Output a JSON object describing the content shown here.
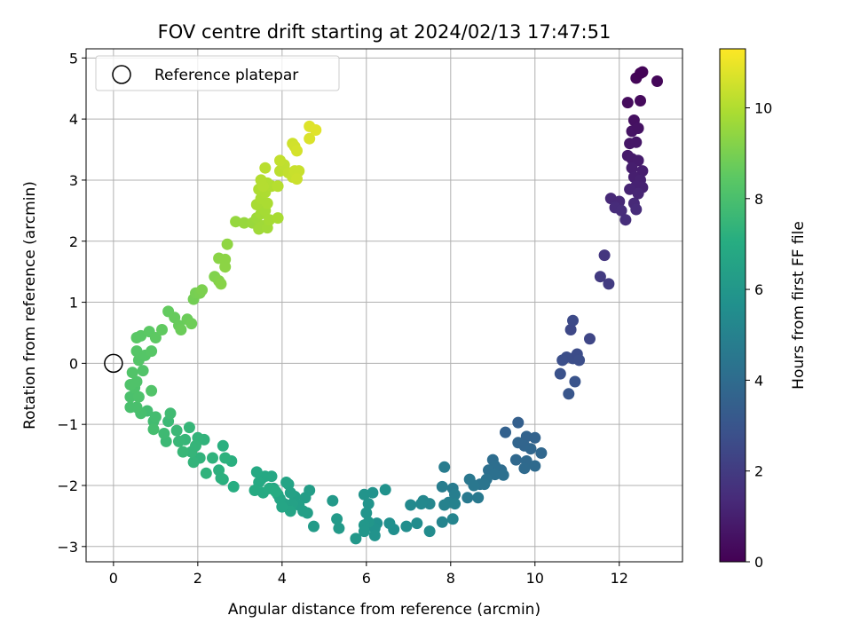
{
  "chart_data": {
    "type": "scatter",
    "title": "FOV centre drift starting at 2024/02/13 17:47:51",
    "xlabel": "Angular distance from reference (arcmin)",
    "ylabel": "Rotation from reference (arcmin)",
    "xlim": [
      -0.65,
      13.5
    ],
    "ylim": [
      -3.25,
      5.15
    ],
    "xticks": [
      0,
      2,
      4,
      6,
      8,
      10,
      12
    ],
    "yticks": [
      -3,
      -2,
      -1,
      0,
      1,
      2,
      3,
      4,
      5
    ],
    "grid": true,
    "legend": {
      "placement": "upper-left",
      "entries": [
        "Reference platepar"
      ]
    },
    "reference_point": {
      "x": 0,
      "y": 0
    },
    "colorbar": {
      "label": "Hours from first FF file",
      "range": [
        0,
        11.3
      ],
      "ticks": [
        0,
        2,
        4,
        6,
        8,
        10
      ],
      "colormap": "viridis"
    },
    "series": [
      {
        "points": [
          [
            12.4,
            4.67,
            0.15
          ],
          [
            12.5,
            4.75,
            0.1
          ],
          [
            12.55,
            4.77,
            0.1
          ],
          [
            12.9,
            4.62,
            0.2
          ],
          [
            12.2,
            4.27,
            0.35
          ],
          [
            12.5,
            4.3,
            0.3
          ],
          [
            12.35,
            3.98,
            0.5
          ],
          [
            12.3,
            3.8,
            0.6
          ],
          [
            12.45,
            3.85,
            0.55
          ],
          [
            12.25,
            3.6,
            0.7
          ],
          [
            12.4,
            3.62,
            0.7
          ],
          [
            12.2,
            3.4,
            0.8
          ],
          [
            12.3,
            3.35,
            0.85
          ],
          [
            12.45,
            3.32,
            0.9
          ],
          [
            12.3,
            3.2,
            0.95
          ],
          [
            12.55,
            3.15,
            0.95
          ],
          [
            12.35,
            3.05,
            1.0
          ],
          [
            12.5,
            3.0,
            1.05
          ],
          [
            12.4,
            2.9,
            1.1
          ],
          [
            12.55,
            2.88,
            1.1
          ],
          [
            12.25,
            2.85,
            1.15
          ],
          [
            12.45,
            2.78,
            1.2
          ],
          [
            11.8,
            2.7,
            1.3
          ],
          [
            12.0,
            2.65,
            1.3
          ],
          [
            12.35,
            2.62,
            1.35
          ],
          [
            11.9,
            2.55,
            1.4
          ],
          [
            12.05,
            2.5,
            1.45
          ],
          [
            12.4,
            2.52,
            1.4
          ],
          [
            12.15,
            2.35,
            1.5
          ],
          [
            11.65,
            1.77,
            1.8
          ],
          [
            11.55,
            1.42,
            1.95
          ],
          [
            11.75,
            1.3,
            2.0
          ],
          [
            11.3,
            0.4,
            2.4
          ],
          [
            10.85,
            0.55,
            2.5
          ],
          [
            10.9,
            0.7,
            2.55
          ],
          [
            10.75,
            0.1,
            2.7
          ],
          [
            10.65,
            0.05,
            2.75
          ],
          [
            10.9,
            0.08,
            2.7
          ],
          [
            11.0,
            0.15,
            2.65
          ],
          [
            11.05,
            0.05,
            2.7
          ],
          [
            10.6,
            -0.17,
            2.85
          ],
          [
            10.95,
            -0.3,
            2.95
          ],
          [
            10.8,
            -0.5,
            3.05
          ],
          [
            9.6,
            -0.97,
            3.45
          ],
          [
            9.8,
            -1.2,
            3.6
          ],
          [
            10.0,
            -1.22,
            3.6
          ],
          [
            9.3,
            -1.13,
            3.55
          ],
          [
            9.6,
            -1.3,
            3.7
          ],
          [
            9.75,
            -1.35,
            3.7
          ],
          [
            9.9,
            -1.4,
            3.75
          ],
          [
            10.15,
            -1.47,
            3.8
          ],
          [
            9.55,
            -1.58,
            3.85
          ],
          [
            9.8,
            -1.6,
            3.9
          ],
          [
            10.0,
            -1.68,
            3.95
          ],
          [
            9.75,
            -1.72,
            3.95
          ],
          [
            9.2,
            -1.75,
            4.0
          ],
          [
            9.0,
            -1.58,
            4.05
          ],
          [
            9.05,
            -1.68,
            4.1
          ],
          [
            8.9,
            -1.75,
            4.15
          ],
          [
            9.05,
            -1.82,
            4.2
          ],
          [
            9.25,
            -1.83,
            4.2
          ],
          [
            8.85,
            -1.9,
            4.3
          ],
          [
            8.7,
            -1.98,
            4.35
          ],
          [
            8.8,
            -1.98,
            4.4
          ],
          [
            8.45,
            -1.9,
            4.5
          ],
          [
            8.55,
            -2.0,
            4.5
          ],
          [
            8.4,
            -2.2,
            4.6
          ],
          [
            8.65,
            -2.2,
            4.6
          ],
          [
            8.05,
            -2.05,
            4.7
          ],
          [
            7.8,
            -2.02,
            4.8
          ],
          [
            7.85,
            -1.7,
            4.75
          ],
          [
            8.1,
            -2.15,
            4.85
          ],
          [
            7.95,
            -2.28,
            4.9
          ],
          [
            8.1,
            -2.3,
            4.95
          ],
          [
            7.85,
            -2.32,
            5.0
          ],
          [
            7.8,
            -2.6,
            5.1
          ],
          [
            8.05,
            -2.55,
            5.1
          ],
          [
            7.5,
            -2.3,
            5.2
          ],
          [
            7.35,
            -2.25,
            5.25
          ],
          [
            7.3,
            -2.3,
            5.3
          ],
          [
            7.05,
            -2.32,
            5.35
          ],
          [
            7.5,
            -2.75,
            5.45
          ],
          [
            7.2,
            -2.62,
            5.5
          ],
          [
            6.95,
            -2.67,
            5.55
          ],
          [
            6.65,
            -2.72,
            5.6
          ],
          [
            6.55,
            -2.62,
            5.65
          ],
          [
            6.25,
            -2.62,
            5.7
          ],
          [
            6.2,
            -2.7,
            5.75
          ],
          [
            6.2,
            -2.82,
            5.8
          ],
          [
            6.45,
            -2.07,
            5.75
          ],
          [
            6.15,
            -2.12,
            5.8
          ],
          [
            5.95,
            -2.15,
            5.85
          ],
          [
            6.05,
            -2.3,
            5.85
          ],
          [
            6.0,
            -2.45,
            5.9
          ],
          [
            6.05,
            -2.6,
            5.95
          ],
          [
            5.95,
            -2.65,
            6.0
          ],
          [
            5.95,
            -2.75,
            6.0
          ],
          [
            5.75,
            -2.87,
            6.05
          ],
          [
            5.2,
            -2.25,
            6.1
          ],
          [
            5.3,
            -2.55,
            6.15
          ],
          [
            5.35,
            -2.7,
            6.15
          ],
          [
            4.75,
            -2.67,
            6.2
          ],
          [
            4.65,
            -2.08,
            6.3
          ],
          [
            4.55,
            -2.2,
            6.3
          ],
          [
            4.6,
            -2.45,
            6.35
          ],
          [
            4.5,
            -2.42,
            6.4
          ],
          [
            4.4,
            -2.32,
            6.4
          ],
          [
            4.3,
            -2.18,
            6.45
          ],
          [
            4.2,
            -2.12,
            6.5
          ],
          [
            4.25,
            -2.3,
            6.5
          ],
          [
            4.15,
            -1.98,
            6.55
          ],
          [
            4.05,
            -2.3,
            6.55
          ],
          [
            4.1,
            -1.95,
            6.6
          ],
          [
            4.2,
            -2.42,
            6.6
          ],
          [
            3.95,
            -2.22,
            6.65
          ],
          [
            4.0,
            -2.35,
            6.65
          ],
          [
            3.9,
            -2.15,
            6.7
          ],
          [
            3.8,
            -2.05,
            6.7
          ],
          [
            3.75,
            -1.85,
            6.75
          ],
          [
            3.6,
            -1.85,
            6.8
          ],
          [
            3.5,
            -1.9,
            6.8
          ],
          [
            3.4,
            -1.78,
            6.85
          ],
          [
            3.45,
            -1.95,
            6.85
          ],
          [
            3.35,
            -2.08,
            6.9
          ],
          [
            3.55,
            -2.12,
            6.9
          ],
          [
            3.7,
            -2.05,
            6.95
          ],
          [
            3.85,
            -2.1,
            7.0
          ],
          [
            2.85,
            -2.02,
            7.05
          ],
          [
            2.6,
            -1.9,
            7.1
          ],
          [
            2.8,
            -1.6,
            7.15
          ],
          [
            2.6,
            -1.35,
            7.15
          ],
          [
            2.5,
            -1.75,
            7.2
          ],
          [
            2.55,
            -1.88,
            7.2
          ],
          [
            2.65,
            -1.55,
            7.25
          ],
          [
            2.35,
            -1.55,
            7.3
          ],
          [
            2.2,
            -1.8,
            7.3
          ],
          [
            2.05,
            -1.55,
            7.35
          ],
          [
            2.15,
            -1.25,
            7.35
          ],
          [
            2.0,
            -1.22,
            7.4
          ],
          [
            1.9,
            -1.62,
            7.4
          ],
          [
            1.85,
            -1.45,
            7.45
          ],
          [
            1.95,
            -1.35,
            7.45
          ],
          [
            1.7,
            -1.25,
            7.5
          ],
          [
            1.8,
            -1.05,
            7.5
          ],
          [
            1.65,
            -1.45,
            7.55
          ],
          [
            1.55,
            -1.28,
            7.55
          ],
          [
            1.5,
            -1.1,
            7.6
          ],
          [
            1.3,
            -0.95,
            7.65
          ],
          [
            1.25,
            -1.28,
            7.65
          ],
          [
            1.2,
            -1.15,
            7.7
          ],
          [
            1.35,
            -0.82,
            7.75
          ],
          [
            0.95,
            -0.95,
            7.8
          ],
          [
            0.8,
            -0.78,
            7.85
          ],
          [
            1.0,
            -0.88,
            7.85
          ],
          [
            0.95,
            -1.08,
            7.9
          ],
          [
            0.65,
            -0.82,
            7.95
          ],
          [
            0.55,
            -0.72,
            8.0
          ],
          [
            0.4,
            -0.72,
            8.0
          ],
          [
            0.4,
            -0.55,
            8.05
          ],
          [
            0.5,
            -0.4,
            8.1
          ],
          [
            0.6,
            -0.55,
            8.1
          ],
          [
            0.4,
            -0.35,
            8.15
          ],
          [
            0.55,
            -0.3,
            8.15
          ],
          [
            0.7,
            -0.12,
            8.2
          ],
          [
            0.45,
            -0.15,
            8.2
          ],
          [
            0.6,
            0.05,
            8.25
          ],
          [
            0.55,
            0.2,
            8.3
          ],
          [
            0.9,
            -0.45,
            8.2
          ],
          [
            0.75,
            0.13,
            8.3
          ],
          [
            0.9,
            0.2,
            8.35
          ],
          [
            0.55,
            0.42,
            8.4
          ],
          [
            0.65,
            0.45,
            8.4
          ],
          [
            0.85,
            0.52,
            8.45
          ],
          [
            1.0,
            0.42,
            8.5
          ],
          [
            1.15,
            0.55,
            8.55
          ],
          [
            1.3,
            0.85,
            8.6
          ],
          [
            1.45,
            0.75,
            8.65
          ],
          [
            1.55,
            0.62,
            8.7
          ],
          [
            1.6,
            0.55,
            8.75
          ],
          [
            1.75,
            0.72,
            8.75
          ],
          [
            1.85,
            0.65,
            8.8
          ],
          [
            1.9,
            1.05,
            8.9
          ],
          [
            1.95,
            1.15,
            8.95
          ],
          [
            2.05,
            1.15,
            9.0
          ],
          [
            2.1,
            1.2,
            9.05
          ],
          [
            2.4,
            1.42,
            9.15
          ],
          [
            2.5,
            1.35,
            9.2
          ],
          [
            2.55,
            1.3,
            9.25
          ],
          [
            2.5,
            1.72,
            9.3
          ],
          [
            2.65,
            1.7,
            9.35
          ],
          [
            2.65,
            1.58,
            9.35
          ],
          [
            2.7,
            1.95,
            9.4
          ],
          [
            2.9,
            2.32,
            9.5
          ],
          [
            3.1,
            2.3,
            9.55
          ],
          [
            3.3,
            2.3,
            9.6
          ],
          [
            3.4,
            2.38,
            9.65
          ],
          [
            3.45,
            2.2,
            9.7
          ],
          [
            3.55,
            2.25,
            9.7
          ],
          [
            3.65,
            2.22,
            9.75
          ],
          [
            3.5,
            2.45,
            9.75
          ],
          [
            3.6,
            2.5,
            9.8
          ],
          [
            3.7,
            2.35,
            9.8
          ],
          [
            3.9,
            2.38,
            9.85
          ],
          [
            3.4,
            2.6,
            9.85
          ],
          [
            3.5,
            2.7,
            9.9
          ],
          [
            3.65,
            2.62,
            9.9
          ],
          [
            3.6,
            2.8,
            9.95
          ],
          [
            3.45,
            2.85,
            9.95
          ],
          [
            3.75,
            2.9,
            10.0
          ],
          [
            3.65,
            2.95,
            10.0
          ],
          [
            3.55,
            2.9,
            10.05
          ],
          [
            3.5,
            3.0,
            10.05
          ],
          [
            3.9,
            2.9,
            10.1
          ],
          [
            3.6,
            3.2,
            10.15
          ],
          [
            3.95,
            3.15,
            10.2
          ],
          [
            4.05,
            3.25,
            10.25
          ],
          [
            3.95,
            3.32,
            10.3
          ],
          [
            4.15,
            3.12,
            10.3
          ],
          [
            4.25,
            3.05,
            10.35
          ],
          [
            4.3,
            3.15,
            10.4
          ],
          [
            4.4,
            3.15,
            10.4
          ],
          [
            4.35,
            3.02,
            10.45
          ],
          [
            4.25,
            3.6,
            10.5
          ],
          [
            4.3,
            3.55,
            10.55
          ],
          [
            4.35,
            3.48,
            10.6
          ],
          [
            4.65,
            3.68,
            10.7
          ],
          [
            4.65,
            3.88,
            10.75
          ],
          [
            4.8,
            3.82,
            10.8
          ]
        ]
      }
    ]
  }
}
